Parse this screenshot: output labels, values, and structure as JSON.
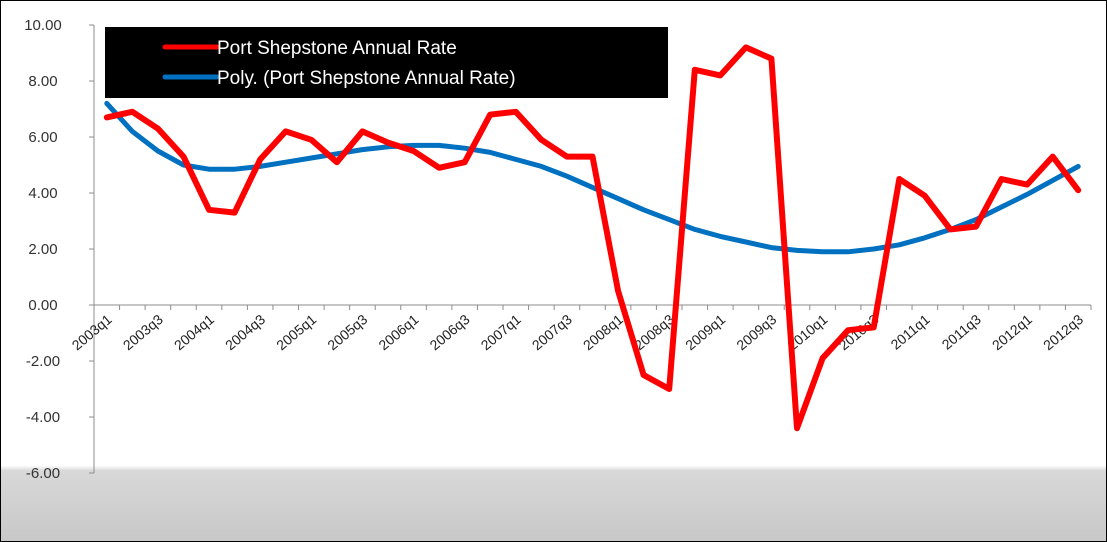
{
  "chart_data": {
    "type": "line",
    "title": "",
    "xlabel": "",
    "ylabel": "",
    "ylim": [
      -6,
      10
    ],
    "yticks": [
      "10.00",
      "8.00",
      "6.00",
      "4.00",
      "2.00",
      "0.00",
      "-2.00",
      "-4.00",
      "-6.00"
    ],
    "grid": false,
    "legend_position": "top-left",
    "categories": [
      "2003q1",
      "2003q2",
      "2003q3",
      "2003q4",
      "2004q1",
      "2004q2",
      "2004q3",
      "2004q4",
      "2005q1",
      "2005q2",
      "2005q3",
      "2005q4",
      "2006q1",
      "2006q2",
      "2006q3",
      "2006q4",
      "2007q1",
      "2007q2",
      "2007q3",
      "2007q4",
      "2008q1",
      "2008q2",
      "2008q3",
      "2008q4",
      "2009q1",
      "2009q2",
      "2009q3",
      "2009q4",
      "2010q1",
      "2010q2",
      "2010q3",
      "2010q4",
      "2011q1",
      "2011q2",
      "2011q3",
      "2011q4",
      "2012q1",
      "2012q2",
      "2012q3"
    ],
    "x_tick_labels": [
      "2003q1",
      "2003q3",
      "2004q1",
      "2004q3",
      "2005q1",
      "2005q3",
      "2006q1",
      "2006q3",
      "2007q1",
      "2007q3",
      "2008q1",
      "2008q3",
      "2009q1",
      "2009q3",
      "2010q1",
      "2010q3",
      "2011q1",
      "2011q3",
      "2012q1",
      "2012q3"
    ],
    "series": [
      {
        "name": "Port Shepstone Annual Rate",
        "color": "#ff0000",
        "values": [
          6.7,
          6.9,
          6.3,
          5.3,
          3.4,
          3.3,
          5.2,
          6.2,
          5.9,
          5.1,
          6.2,
          5.8,
          5.5,
          4.9,
          5.1,
          6.8,
          6.9,
          5.9,
          5.3,
          5.3,
          0.5,
          -2.5,
          -3.0,
          8.4,
          8.2,
          9.2,
          8.8,
          -4.4,
          -1.9,
          -0.9,
          -0.8,
          4.5,
          3.9,
          2.7,
          2.8,
          4.5,
          4.3,
          5.3,
          4.1
        ]
      },
      {
        "name": "Poly. (Port Shepstone Annual Rate)",
        "color": "#0070c0",
        "values": [
          7.2,
          6.2,
          5.5,
          5.0,
          4.85,
          4.85,
          4.95,
          5.1,
          5.25,
          5.4,
          5.55,
          5.65,
          5.7,
          5.7,
          5.6,
          5.45,
          5.2,
          4.95,
          4.6,
          4.2,
          3.8,
          3.4,
          3.05,
          2.7,
          2.45,
          2.25,
          2.05,
          1.95,
          1.9,
          1.9,
          2.0,
          2.15,
          2.4,
          2.7,
          3.05,
          3.5,
          3.95,
          4.45,
          4.95
        ]
      }
    ]
  }
}
